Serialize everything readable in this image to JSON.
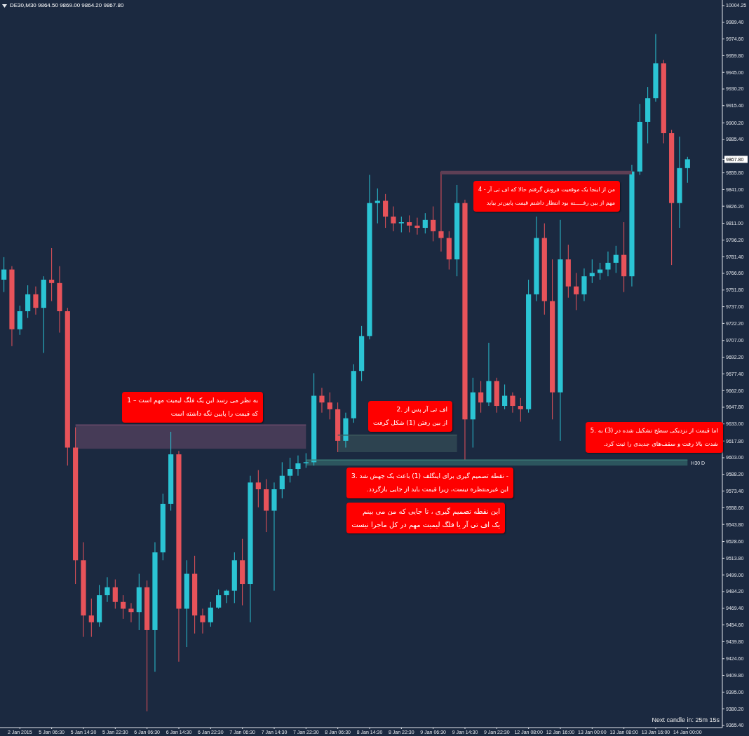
{
  "chart_data": {
    "type": "candlestick",
    "title": "DE30,M30 9864.50 9869.00 9864.20 9867.80",
    "categories": [
      null,
      null,
      "2 Jan 2015",
      null,
      null,
      null,
      "5 Jan 06:30",
      null,
      null,
      null,
      "5 Jan 14:30",
      null,
      null,
      null,
      "5 Jan 22:30",
      null,
      null,
      null,
      "6 Jan 06:30",
      null,
      null,
      null,
      "6 Jan 14:30",
      null,
      null,
      null,
      "6 Jan 22:30",
      null,
      null,
      null,
      "7 Jan 06:30",
      null,
      null,
      null,
      "7 Jan 14:30",
      null,
      null,
      null,
      "7 Jan 22:30",
      null,
      null,
      null,
      "8 Jan 06:30",
      null,
      null,
      null,
      "8 Jan 14:30",
      null,
      null,
      null,
      "8 Jan 22:30",
      null,
      null,
      null,
      "9 Jan 06:30",
      null,
      null,
      null,
      "9 Jan 14:30",
      null,
      null,
      null,
      "9 Jan 22:30",
      null,
      null,
      null,
      "12 Jan 08:00",
      null,
      null,
      null,
      "12 Jan 16:00",
      null,
      null,
      null,
      "13 Jan 00:00",
      null,
      null,
      null,
      "13 Jan 08:00",
      null,
      null,
      null,
      "13 Jan 16:00",
      null,
      null,
      null,
      "14 Jan 00:00"
    ],
    "ohlc": [
      [
        9761,
        9781,
        9750,
        9770
      ],
      [
        9770,
        9773,
        9702,
        9717
      ],
      [
        9717,
        9738,
        9712,
        9733
      ],
      [
        9733,
        9756,
        9727,
        9748
      ],
      [
        9748,
        9755,
        9730,
        9736
      ],
      [
        9736,
        9764,
        9696,
        9761
      ],
      [
        9761,
        9789,
        9742,
        9758
      ],
      [
        9758,
        9773,
        9714,
        9733
      ],
      [
        9733,
        9736,
        9596,
        9612
      ],
      [
        9612,
        9630,
        9491,
        9512
      ],
      [
        9512,
        9528,
        9444,
        9463
      ],
      [
        9463,
        9478,
        9444,
        9457
      ],
      [
        9457,
        9490,
        9453,
        9481
      ],
      [
        9481,
        9497,
        9475,
        9488
      ],
      [
        9488,
        9495,
        9469,
        9475
      ],
      [
        9475,
        9481,
        9460,
        9469
      ],
      [
        9469,
        9474,
        9457,
        9466
      ],
      [
        9466,
        9500,
        9450,
        9488
      ],
      [
        9488,
        9494,
        9378,
        9450
      ],
      [
        9450,
        9528,
        9413,
        9519
      ],
      [
        9519,
        9571,
        9512,
        9562
      ],
      [
        9562,
        9626,
        9556,
        9606
      ],
      [
        9606,
        9609,
        9422,
        9469
      ],
      [
        9469,
        9512,
        9435,
        9500
      ],
      [
        9500,
        9516,
        9447,
        9463
      ],
      [
        9463,
        9469,
        9447,
        9457
      ],
      [
        9457,
        9475,
        9453,
        9470
      ],
      [
        9470,
        9486,
        9469,
        9481
      ],
      [
        9481,
        9486,
        9474,
        9485
      ],
      [
        9485,
        9519,
        9474,
        9512
      ],
      [
        9512,
        9531,
        9472,
        9491
      ],
      [
        9491,
        9587,
        9457,
        9581
      ],
      [
        9581,
        9592,
        9559,
        9575
      ],
      [
        9575,
        9584,
        9537,
        9556
      ],
      [
        9556,
        9581,
        9485,
        9575
      ],
      [
        9575,
        9599,
        9567,
        9587
      ],
      [
        9587,
        9603,
        9581,
        9593
      ],
      [
        9593,
        9605,
        9587,
        9598
      ],
      [
        9598,
        9607,
        9594,
        9599
      ],
      [
        9599,
        9678,
        9596,
        9658
      ],
      [
        9658,
        9665,
        9643,
        9652
      ],
      [
        9652,
        9661,
        9637,
        9646
      ],
      [
        9646,
        9652,
        9608,
        9618
      ],
      [
        9618,
        9643,
        9612,
        9638
      ],
      [
        9638,
        9686,
        9634,
        9680
      ],
      [
        9680,
        9720,
        9671,
        9711
      ],
      [
        9711,
        9854,
        9708,
        9829
      ],
      [
        9829,
        9842,
        9811,
        9831
      ],
      [
        9831,
        9837,
        9807,
        9817
      ],
      [
        9817,
        9826,
        9804,
        9811
      ],
      [
        9811,
        9817,
        9803,
        9812
      ],
      [
        9812,
        9818,
        9803,
        9809
      ],
      [
        9809,
        9816,
        9801,
        9807
      ],
      [
        9807,
        9820,
        9802,
        9814
      ],
      [
        9814,
        9826,
        9795,
        9804
      ],
      [
        9804,
        9857,
        9786,
        9798
      ],
      [
        9798,
        9804,
        9770,
        9779
      ],
      [
        9779,
        9845,
        9764,
        9829
      ],
      [
        9829,
        9832,
        9601,
        9637
      ],
      [
        9637,
        9674,
        9612,
        9661
      ],
      [
        9661,
        9671,
        9643,
        9652
      ],
      [
        9652,
        9705,
        9649,
        9671
      ],
      [
        9671,
        9674,
        9643,
        9649
      ],
      [
        9649,
        9668,
        9646,
        9658
      ],
      [
        9658,
        9661,
        9643,
        9649
      ],
      [
        9649,
        9656,
        9635,
        9646
      ],
      [
        9646,
        9761,
        9643,
        9748
      ],
      [
        9748,
        9817,
        9742,
        9798
      ],
      [
        9798,
        9811,
        9730,
        9742
      ],
      [
        9742,
        9779,
        9637,
        9661
      ],
      [
        9661,
        9814,
        9618,
        9779
      ],
      [
        9779,
        9792,
        9745,
        9755
      ],
      [
        9755,
        9767,
        9734,
        9748
      ],
      [
        9748,
        9771,
        9742,
        9764
      ],
      [
        9764,
        9779,
        9758,
        9767
      ],
      [
        9767,
        9776,
        9761,
        9770
      ],
      [
        9770,
        9786,
        9764,
        9776
      ],
      [
        9776,
        9791,
        9767,
        9783
      ],
      [
        9783,
        9812,
        9750,
        9764
      ],
      [
        9764,
        9863,
        9755,
        9857
      ],
      [
        9857,
        9917,
        9854,
        9901
      ],
      [
        9901,
        9932,
        9882,
        9922
      ],
      [
        9922,
        9979,
        9919,
        9953
      ],
      [
        9953,
        9956,
        9882,
        9891
      ],
      [
        9891,
        9894,
        9774,
        9829
      ],
      [
        9829,
        9888,
        9807,
        9860
      ],
      [
        9860,
        9870,
        9847,
        9867.8
      ]
    ],
    "colors": [
      "#2bc4d4",
      "#e8535a",
      "#2bc4d4",
      "#2bc4d4",
      "#e8535a",
      "#2bc4d4",
      "#e8535a",
      "#e8535a",
      "#e8535a",
      "#e8535a",
      "#e8535a",
      "#e8535a",
      "#2bc4d4",
      "#2bc4d4",
      "#e8535a",
      "#e8535a",
      "#e8535a",
      "#2bc4d4",
      "#e8535a",
      "#2bc4d4",
      "#2bc4d4",
      "#2bc4d4",
      "#e8535a",
      "#2bc4d4",
      "#e8535a",
      "#e8535a",
      "#2bc4d4",
      "#2bc4d4",
      "#2bc4d4",
      "#2bc4d4",
      "#e8535a",
      "#2bc4d4",
      "#e8535a",
      "#e8535a",
      "#2bc4d4",
      "#2bc4d4",
      "#2bc4d4",
      "#2bc4d4",
      "#2bc4d4",
      "#2bc4d4",
      "#e8535a",
      "#e8535a",
      "#e8535a",
      "#2bc4d4",
      "#2bc4d4",
      "#2bc4d4",
      "#2bc4d4",
      "#2bc4d4",
      "#e8535a",
      "#e8535a",
      "#2bc4d4",
      "#e8535a",
      "#e8535a",
      "#2bc4d4",
      "#e8535a",
      "#e8535a",
      "#e8535a",
      "#2bc4d4",
      "#e8535a",
      "#2bc4d4",
      "#e8535a",
      "#2bc4d4",
      "#e8535a",
      "#2bc4d4",
      "#e8535a",
      "#e8535a",
      "#2bc4d4",
      "#2bc4d4",
      "#e8535a",
      "#e8535a",
      "#2bc4d4",
      "#e8535a",
      "#e8535a",
      "#2bc4d4",
      "#2bc4d4",
      "#2bc4d4",
      "#2bc4d4",
      "#2bc4d4",
      "#e8535a",
      "#2bc4d4",
      "#2bc4d4",
      "#2bc4d4",
      "#2bc4d4",
      "#e8535a",
      "#e8535a",
      "#2bc4d4",
      "#2bc4d4"
    ],
    "series": [
      {
        "type": "line",
        "color": "#6a4a6a",
        "values": [
          null,
          null,
          null,
          null,
          null,
          null,
          null,
          null,
          null,
          9632,
          9632,
          9632,
          9632,
          9632,
          9632,
          9632,
          9632,
          9632,
          9632,
          9632,
          9632,
          9632,
          9632,
          9632,
          9632,
          9632,
          9632,
          9632,
          9632,
          9632,
          9632,
          9632,
          9632,
          9632,
          9632,
          9632,
          9632,
          9632,
          9632,
          null,
          null,
          null,
          null,
          null,
          null,
          null,
          null,
          null,
          null,
          null,
          null,
          null,
          null,
          null,
          null,
          null,
          null,
          null,
          null,
          null,
          null,
          null,
          null,
          null,
          null,
          null,
          null,
          null,
          null,
          null,
          null,
          null,
          null,
          null,
          null,
          null,
          null,
          null,
          null,
          null,
          null,
          null,
          null,
          null,
          null,
          null,
          null
        ],
        "upper": [
          null,
          null,
          null,
          null,
          null,
          null,
          null,
          null,
          null,
          9632,
          9632,
          9632,
          9632,
          9632,
          9632,
          9632,
          9632,
          9632,
          9632,
          9632,
          9632,
          9632,
          9632,
          9632,
          9632,
          9632,
          9632,
          9632,
          9632,
          9632,
          9632,
          9632,
          9632,
          9632,
          9632,
          9632,
          9632,
          9632,
          9632,
          null,
          null,
          null,
          null,
          null,
          null,
          null,
          null,
          null,
          null,
          null,
          null,
          null,
          null,
          null,
          null,
          null,
          null,
          null,
          null,
          null,
          null,
          null,
          null,
          null,
          null,
          null,
          null,
          null,
          null,
          null,
          null,
          null,
          null,
          null,
          null,
          null,
          null,
          null,
          null,
          null,
          null,
          null,
          null,
          null,
          null,
          null,
          null
        ],
        "lower": [
          null,
          null,
          null,
          null,
          null,
          null,
          null,
          null,
          null,
          9611,
          9611,
          9611,
          9611,
          9611,
          9611,
          9611,
          9611,
          9611,
          9611,
          9611,
          9611,
          9611,
          9611,
          9611,
          9611,
          9611,
          9611,
          9611,
          9611,
          9611,
          9611,
          9611,
          9611,
          9611,
          9611,
          9611,
          9611,
          9611,
          9611,
          null,
          null,
          null,
          null,
          null,
          null,
          null,
          null,
          null,
          null,
          null,
          null,
          null,
          null,
          null,
          null,
          null,
          null,
          null,
          null,
          null,
          null,
          null,
          null,
          null,
          null,
          null,
          null,
          null,
          null,
          null,
          null,
          null,
          null,
          null,
          null,
          null,
          null,
          null,
          null,
          null,
          null,
          null,
          null,
          null,
          null,
          null,
          null
        ]
      },
      {
        "type": "line",
        "color": "#3c5a5c",
        "values": [
          null,
          null,
          null,
          null,
          null,
          null,
          null,
          null,
          null,
          null,
          null,
          null,
          null,
          null,
          null,
          null,
          null,
          null,
          null,
          null,
          null,
          null,
          null,
          null,
          null,
          null,
          null,
          null,
          null,
          null,
          null,
          null,
          null,
          null,
          null,
          null,
          null,
          null,
          null,
          null,
          null,
          null,
          9623,
          9623,
          9623,
          9623,
          9623,
          9623,
          9623,
          9623,
          9623,
          9623,
          9623,
          9623,
          9623,
          9623,
          9623,
          9623,
          null,
          null,
          null,
          null,
          null,
          null,
          null,
          null,
          null,
          null,
          null,
          null,
          null,
          null,
          null,
          null,
          null,
          null,
          null,
          null,
          null,
          null,
          null,
          null,
          null,
          null,
          null,
          null,
          null
        ],
        "upper": [
          null,
          null,
          null,
          null,
          null,
          null,
          null,
          null,
          null,
          null,
          null,
          null,
          null,
          null,
          null,
          null,
          null,
          null,
          null,
          null,
          null,
          null,
          null,
          null,
          null,
          null,
          null,
          null,
          null,
          null,
          null,
          null,
          null,
          null,
          null,
          null,
          null,
          null,
          null,
          null,
          null,
          null,
          9623,
          9623,
          9623,
          9623,
          9623,
          9623,
          9623,
          9623,
          9623,
          9623,
          9623,
          9623,
          9623,
          9623,
          9623,
          9623,
          null,
          null,
          null,
          null,
          null,
          null,
          null,
          null,
          null,
          null,
          null,
          null,
          null,
          null,
          null,
          null,
          null,
          null,
          null,
          null,
          null,
          null,
          null,
          null,
          null,
          null,
          null,
          null,
          null
        ],
        "lower": [
          null,
          null,
          null,
          null,
          null,
          null,
          null,
          null,
          null,
          null,
          null,
          null,
          null,
          null,
          null,
          null,
          null,
          null,
          null,
          null,
          null,
          null,
          null,
          null,
          null,
          null,
          null,
          null,
          null,
          null,
          null,
          null,
          null,
          null,
          null,
          null,
          null,
          null,
          null,
          null,
          null,
          null,
          9608,
          9608,
          9608,
          9608,
          9608,
          9608,
          9608,
          9608,
          9608,
          9608,
          9608,
          9608,
          9608,
          9608,
          9608,
          9608,
          null,
          null,
          null,
          null,
          null,
          null,
          null,
          null,
          null,
          null,
          null,
          null,
          null,
          null,
          null,
          null,
          null,
          null,
          null,
          null,
          null,
          null,
          null,
          null,
          null,
          null,
          null,
          null,
          null
        ]
      },
      {
        "type": "line",
        "name": "H30 D",
        "color": "#3a7a77",
        "values": [
          null,
          null,
          null,
          null,
          null,
          null,
          null,
          null,
          null,
          null,
          null,
          null,
          null,
          null,
          null,
          null,
          null,
          null,
          null,
          null,
          null,
          null,
          null,
          null,
          null,
          null,
          null,
          null,
          null,
          null,
          null,
          null,
          null,
          null,
          null,
          null,
          null,
          null,
          9601,
          9601,
          9601,
          9601,
          9601,
          9601,
          9601,
          9601,
          9601,
          9601,
          9601,
          9601,
          9601,
          9601,
          9601,
          9601,
          9601,
          9601,
          9601,
          9601,
          9601,
          9601,
          9601,
          9601,
          9601,
          9601,
          9601,
          9601,
          9601,
          9601,
          9601,
          9601,
          9601,
          9601,
          9601,
          9601,
          9601,
          9601,
          9601,
          9601,
          9601,
          9601,
          9601,
          9601,
          9601,
          9601,
          9601,
          9601,
          9601
        ],
        "upper": [
          null,
          null,
          null,
          null,
          null,
          null,
          null,
          null,
          null,
          null,
          null,
          null,
          null,
          null,
          null,
          null,
          null,
          null,
          null,
          null,
          null,
          null,
          null,
          null,
          null,
          null,
          null,
          null,
          null,
          null,
          null,
          null,
          null,
          null,
          null,
          null,
          null,
          null,
          9601,
          9601,
          9601,
          9601,
          9601,
          9601,
          9601,
          9601,
          9601,
          9601,
          9601,
          9601,
          9601,
          9601,
          9601,
          9601,
          9601,
          9601,
          9601,
          9601,
          9601,
          9601,
          9601,
          9601,
          9601,
          9601,
          9601,
          9601,
          9601,
          9601,
          9601,
          9601,
          9601,
          9601,
          9601,
          9601,
          9601,
          9601,
          9601,
          9601,
          9601,
          9601,
          9601,
          9601,
          9601,
          9601,
          9601,
          9601,
          9601
        ],
        "lower": [
          null,
          null,
          null,
          null,
          null,
          null,
          null,
          null,
          null,
          null,
          null,
          null,
          null,
          null,
          null,
          null,
          null,
          null,
          null,
          null,
          null,
          null,
          null,
          null,
          null,
          null,
          null,
          null,
          null,
          null,
          null,
          null,
          null,
          null,
          null,
          null,
          null,
          null,
          9596,
          9596,
          9596,
          9596,
          9596,
          9596,
          9596,
          9596,
          9596,
          9596,
          9596,
          9596,
          9596,
          9596,
          9596,
          9596,
          9596,
          9596,
          9596,
          9596,
          9596,
          9596,
          9596,
          9596,
          9596,
          9596,
          9596,
          9596,
          9596,
          9596,
          9596,
          9596,
          9596,
          9596,
          9596,
          9596,
          9596,
          9596,
          9596,
          9596,
          9596,
          9596,
          9596,
          9596,
          9596,
          9596,
          9596,
          9596,
          9596
        ]
      },
      {
        "type": "line",
        "color": "#5e3f55",
        "values": [
          null,
          null,
          null,
          null,
          null,
          null,
          null,
          null,
          null,
          null,
          null,
          null,
          null,
          null,
          null,
          null,
          null,
          null,
          null,
          null,
          null,
          null,
          null,
          null,
          null,
          null,
          null,
          null,
          null,
          null,
          null,
          null,
          null,
          null,
          null,
          null,
          null,
          null,
          null,
          null,
          null,
          null,
          null,
          null,
          null,
          null,
          null,
          null,
          null,
          null,
          null,
          null,
          null,
          null,
          null,
          9856,
          9856,
          9856,
          9856,
          9856,
          9856,
          9856,
          9856,
          9856,
          9856,
          9856,
          9856,
          9856,
          9856,
          9856,
          9856,
          9856,
          9856,
          9856,
          9856,
          9856,
          9856,
          9856,
          9856,
          9856,
          null,
          null,
          null,
          null,
          null,
          null,
          null
        ]
      }
    ],
    "ylim": [
      9363.5,
      10009.2
    ],
    "yticks": [
      {
        "value": 10004.25,
        "label": "10004.25"
      },
      {
        "value": 9989.4,
        "label": "9989.40"
      },
      {
        "value": 9974.6,
        "label": "9974.60"
      },
      {
        "value": 9959.8,
        "label": "9959.80"
      },
      {
        "value": 9945,
        "label": "9945.00"
      },
      {
        "value": 9930.2,
        "label": "9930.20"
      },
      {
        "value": 9915.4,
        "label": "9915.40"
      },
      {
        "value": 9900.2,
        "label": "9900.20"
      },
      {
        "value": 9885.4,
        "label": "9885.40"
      },
      {
        "value": 9867.8,
        "label": "9867.80"
      },
      {
        "value": 9855.8,
        "label": "9855.80"
      },
      {
        "value": 9841,
        "label": "9841.00"
      },
      {
        "value": 9826.2,
        "label": "9826.20"
      },
      {
        "value": 9811,
        "label": "9811.00"
      },
      {
        "value": 9796.2,
        "label": "9796.20"
      },
      {
        "value": 9781.4,
        "label": "9781.40"
      },
      {
        "value": 9766.6,
        "label": "9766.60"
      },
      {
        "value": 9751.8,
        "label": "9751.80"
      },
      {
        "value": 9737,
        "label": "9737.00"
      },
      {
        "value": 9722.2,
        "label": "9722.20"
      },
      {
        "value": 9707,
        "label": "9707.00"
      },
      {
        "value": 9692.2,
        "label": "9692.20"
      },
      {
        "value": 9677.4,
        "label": "9677.40"
      },
      {
        "value": 9662.6,
        "label": "9662.60"
      },
      {
        "value": 9647.8,
        "label": "9647.80"
      },
      {
        "value": 9633,
        "label": "9633.00"
      },
      {
        "value": 9617.8,
        "label": "9617.80"
      },
      {
        "value": 9603,
        "label": "9603.00"
      },
      {
        "value": 9588.2,
        "label": "9588.20"
      },
      {
        "value": 9573.4,
        "label": "9573.40"
      },
      {
        "value": 9558.6,
        "label": "9558.60"
      },
      {
        "value": 9543.8,
        "label": "9543.80"
      },
      {
        "value": 9528.6,
        "label": "9528.60"
      },
      {
        "value": 9513.8,
        "label": "9513.80"
      },
      {
        "value": 9499,
        "label": "9499.00"
      },
      {
        "value": 9484.2,
        "label": "9484.20"
      },
      {
        "value": 9469.4,
        "label": "9469.40"
      },
      {
        "value": 9454.6,
        "label": "9454.60"
      },
      {
        "value": 9439.8,
        "label": "9439.80"
      },
      {
        "value": 9424.6,
        "label": "9424.60"
      },
      {
        "value": 9409.8,
        "label": "9409.80"
      },
      {
        "value": 9395,
        "label": "9395.00"
      },
      {
        "value": 9380.2,
        "label": "9380.20"
      },
      {
        "value": 9365.4,
        "label": "9365.40"
      }
    ],
    "annotations": [
      "به نظر می رسد این یک فلگ لیمیت مهم است – 1\nکه قیمت را پایین نگه داشته است",
      "اف تی آر پس از .2\nاز بین رفتن (1) شکل گرفت",
      "- نقطه تصمیم گیری برای اینگلف (1) باعث یک جهش شد .3\nاین غیرمنتظره نیست، زیرا قیمت باید از جایی بازگردد.",
      "این نقطه تصمیم گیری ، تا جایی که من می بینم\nیک اف تی آر یا فلگ لیمیت مهم در کل ماجرا نیست",
      "من از اینجا یک موقعیت فروش گرفتم حالا که اف تی آر - 4\nمهم از بین رفـــــته بود انتظار داشتم قیمت پایین‌تر بیاید",
      "اما قیمت از نزدیکی سطح تشکیل شده در (3) به .5\nشدت بالا رفت و سقف‌های جدیدی را ثبت کرد.",
      "Next candle in: 25m 15s"
    ]
  }
}
